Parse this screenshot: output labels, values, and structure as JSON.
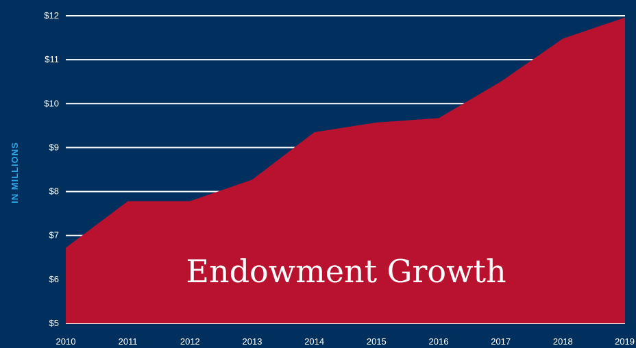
{
  "chart_data": {
    "type": "area",
    "title": "Endowment Growth",
    "ylabel": "IN MILLIONS",
    "xlabel": "",
    "x": [
      "2010",
      "2011",
      "2012",
      "2013",
      "2014",
      "2015",
      "2016",
      "2017",
      "2018",
      "2019"
    ],
    "series": [
      {
        "values": [
          6.72,
          7.78,
          7.78,
          8.27,
          9.35,
          9.57,
          9.67,
          10.5,
          11.48,
          11.96
        ]
      }
    ],
    "ylim": [
      5,
      12
    ],
    "yticks": [
      "$5",
      "$6",
      "$7",
      "$8",
      "$9",
      "$10",
      "$11",
      "$12"
    ],
    "grid": true,
    "colors": {
      "background": "#02305e",
      "area": "#b8122f",
      "gridline": "#ffffff",
      "ylabel": "#2aa6e6",
      "text": "#ffffff"
    }
  }
}
